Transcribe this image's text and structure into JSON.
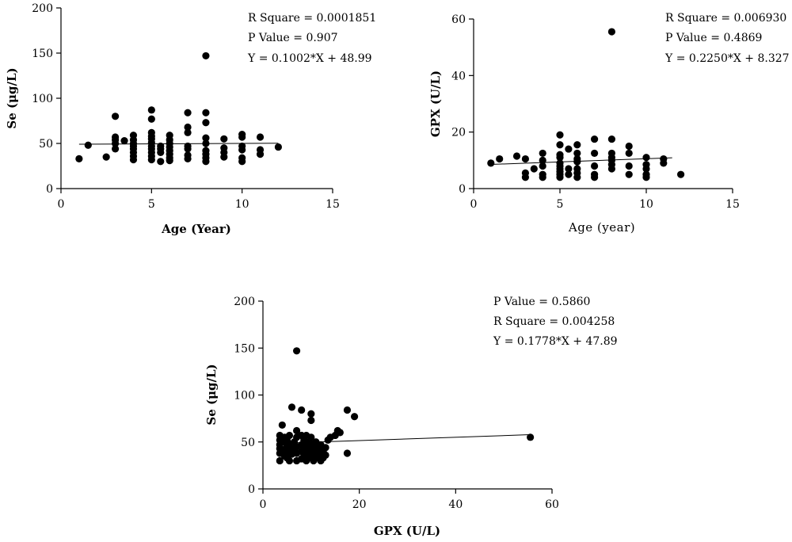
{
  "chart_data": [
    {
      "type": "scatter",
      "xlabel": "Age (Year)",
      "ylabel": "Se (μg/L)",
      "xlim": [
        0,
        15
      ],
      "ylim": [
        0,
        200
      ],
      "xticks": [
        "0",
        "5",
        "10",
        "15"
      ],
      "yticks": [
        "0",
        "50",
        "100",
        "150",
        "200"
      ],
      "annotations": [
        "R Square = 0.0001851",
        "P Value = 0.907",
        "Y = 0.1002*X + 48.99"
      ],
      "regression": {
        "slope": 0.1002,
        "intercept": 48.99,
        "x_from": 1,
        "x_to": 12
      },
      "points": [
        [
          1,
          33
        ],
        [
          1.5,
          48
        ],
        [
          2.5,
          35
        ],
        [
          3,
          44
        ],
        [
          3,
          50
        ],
        [
          3,
          54
        ],
        [
          3,
          57
        ],
        [
          3,
          80
        ],
        [
          3.5,
          53
        ],
        [
          4,
          32
        ],
        [
          4,
          36
        ],
        [
          4,
          40
        ],
        [
          4,
          44
        ],
        [
          4,
          47
        ],
        [
          4,
          50
        ],
        [
          4,
          54
        ],
        [
          4,
          59
        ],
        [
          5,
          32
        ],
        [
          5,
          36
        ],
        [
          5,
          40
        ],
        [
          5,
          44
        ],
        [
          5,
          47
        ],
        [
          5,
          51
        ],
        [
          5,
          55
        ],
        [
          5,
          58
        ],
        [
          5,
          62
        ],
        [
          5,
          77
        ],
        [
          5,
          87
        ],
        [
          5.5,
          30
        ],
        [
          5.5,
          40
        ],
        [
          5.5,
          44
        ],
        [
          5.5,
          47
        ],
        [
          6,
          31
        ],
        [
          6,
          34
        ],
        [
          6,
          38
        ],
        [
          6,
          42
        ],
        [
          6,
          46
        ],
        [
          6,
          50
        ],
        [
          6,
          54
        ],
        [
          6,
          59
        ],
        [
          7,
          33
        ],
        [
          7,
          37
        ],
        [
          7,
          44
        ],
        [
          7,
          47
        ],
        [
          7,
          62
        ],
        [
          7,
          68
        ],
        [
          7,
          84
        ],
        [
          8,
          30
        ],
        [
          8,
          34
        ],
        [
          8,
          38
        ],
        [
          8,
          42
        ],
        [
          8,
          50
        ],
        [
          8,
          56
        ],
        [
          8,
          73
        ],
        [
          8,
          84
        ],
        [
          8,
          147
        ],
        [
          9,
          35
        ],
        [
          9,
          40
        ],
        [
          9,
          45
        ],
        [
          9,
          55
        ],
        [
          10,
          30
        ],
        [
          10,
          34
        ],
        [
          10,
          43
        ],
        [
          10,
          47
        ],
        [
          10,
          57
        ],
        [
          10,
          60
        ],
        [
          11,
          38
        ],
        [
          11,
          43
        ],
        [
          11,
          57
        ],
        [
          12,
          46
        ]
      ]
    },
    {
      "type": "scatter",
      "xlabel": "Age (year)",
      "ylabel": "GPX (U/L)",
      "xlim": [
        0,
        15
      ],
      "ylim": [
        0,
        60
      ],
      "xticks": [
        "0",
        "5",
        "10",
        "15"
      ],
      "yticks": [
        "0",
        "20",
        "40",
        "60"
      ],
      "annotations": [
        "R Square = 0.006930",
        "P Value = 0.4869",
        "Y = 0.2250*X + 8.327"
      ],
      "regression": {
        "slope": 0.225,
        "intercept": 8.327,
        "x_from": 1,
        "x_to": 11.5
      },
      "points": [
        [
          1,
          9
        ],
        [
          1.5,
          10.5
        ],
        [
          2.5,
          11.5
        ],
        [
          3,
          4
        ],
        [
          3,
          5.5
        ],
        [
          3,
          10.5
        ],
        [
          3.5,
          7
        ],
        [
          4,
          4
        ],
        [
          4,
          5
        ],
        [
          4,
          8
        ],
        [
          4,
          10
        ],
        [
          4,
          12.5
        ],
        [
          5,
          4
        ],
        [
          5,
          5
        ],
        [
          5,
          6
        ],
        [
          5,
          7
        ],
        [
          5,
          8
        ],
        [
          5,
          9
        ],
        [
          5,
          11
        ],
        [
          5,
          12
        ],
        [
          5,
          15.5
        ],
        [
          5,
          19
        ],
        [
          5.5,
          5
        ],
        [
          5.5,
          7
        ],
        [
          5.5,
          14
        ],
        [
          6,
          4
        ],
        [
          6,
          5.5
        ],
        [
          6,
          7
        ],
        [
          6,
          9.5
        ],
        [
          6,
          10.5
        ],
        [
          6,
          12.5
        ],
        [
          6,
          15.5
        ],
        [
          7,
          4
        ],
        [
          7,
          5
        ],
        [
          7,
          8
        ],
        [
          7,
          12.5
        ],
        [
          7,
          17.5
        ],
        [
          8,
          7
        ],
        [
          8,
          8.5
        ],
        [
          8,
          10
        ],
        [
          8,
          11
        ],
        [
          8,
          12.5
        ],
        [
          8,
          17.5
        ],
        [
          8,
          55.5
        ],
        [
          9,
          5
        ],
        [
          9,
          8
        ],
        [
          9,
          12.5
        ],
        [
          9,
          15
        ],
        [
          10,
          4
        ],
        [
          10,
          5
        ],
        [
          10,
          7
        ],
        [
          10,
          8.5
        ],
        [
          10,
          11
        ],
        [
          11,
          9
        ],
        [
          11,
          10.5
        ],
        [
          12,
          5
        ]
      ]
    },
    {
      "type": "scatter",
      "xlabel": "GPX (U/L)",
      "ylabel": "Se (μg/L)",
      "xlim": [
        0,
        60
      ],
      "ylim": [
        0,
        200
      ],
      "xticks": [
        "0",
        "20",
        "40",
        "60"
      ],
      "yticks": [
        "0",
        "50",
        "100",
        "150",
        "200"
      ],
      "annotations": [
        "P Value = 0.5860",
        "R Square = 0.004258",
        "Y = 0.1778*X + 47.89"
      ],
      "regression": {
        "slope": 0.1778,
        "intercept": 47.89,
        "x_from": 3.5,
        "x_to": 55.5
      },
      "points": [
        [
          3.5,
          30
        ],
        [
          3.5,
          38
        ],
        [
          3.5,
          43
        ],
        [
          3.5,
          47
        ],
        [
          3.5,
          52
        ],
        [
          3.5,
          57
        ],
        [
          4,
          68
        ],
        [
          4.5,
          35
        ],
        [
          4.5,
          42
        ],
        [
          4.5,
          50
        ],
        [
          4.5,
          55
        ],
        [
          5,
          33
        ],
        [
          5,
          40
        ],
        [
          5,
          45
        ],
        [
          5,
          52
        ],
        [
          5.5,
          30
        ],
        [
          5.5,
          48
        ],
        [
          5.5,
          57
        ],
        [
          6,
          37
        ],
        [
          6,
          43
        ],
        [
          6,
          87
        ],
        [
          6.5,
          40
        ],
        [
          6.5,
          50
        ],
        [
          7,
          30
        ],
        [
          7,
          38
        ],
        [
          7,
          45
        ],
        [
          7,
          55
        ],
        [
          7,
          62
        ],
        [
          7,
          147
        ],
        [
          8,
          32
        ],
        [
          8,
          40
        ],
        [
          8,
          47
        ],
        [
          8,
          57
        ],
        [
          8,
          84
        ],
        [
          8.5,
          35
        ],
        [
          8.5,
          42
        ],
        [
          8.5,
          52
        ],
        [
          9,
          30
        ],
        [
          9,
          38
        ],
        [
          9,
          44
        ],
        [
          9,
          50
        ],
        [
          9,
          57
        ],
        [
          9.5,
          33
        ],
        [
          9.5,
          40
        ],
        [
          9.5,
          47
        ],
        [
          10,
          36
        ],
        [
          10,
          42
        ],
        [
          10,
          48
        ],
        [
          10,
          55
        ],
        [
          10,
          73
        ],
        [
          10,
          80
        ],
        [
          10.5,
          30
        ],
        [
          10.5,
          37
        ],
        [
          11,
          33
        ],
        [
          11,
          40
        ],
        [
          11,
          45
        ],
        [
          11,
          50
        ],
        [
          11.5,
          35
        ],
        [
          11.5,
          42
        ],
        [
          12,
          30
        ],
        [
          12,
          38
        ],
        [
          12,
          47
        ],
        [
          12.5,
          33
        ],
        [
          12.5,
          40
        ],
        [
          13,
          36
        ],
        [
          13,
          44
        ],
        [
          13.5,
          52
        ],
        [
          14,
          55
        ],
        [
          15,
          57
        ],
        [
          15.5,
          62
        ],
        [
          16,
          60
        ],
        [
          17.5,
          38
        ],
        [
          17.5,
          84
        ],
        [
          19,
          77
        ],
        [
          55.5,
          55
        ]
      ]
    }
  ]
}
